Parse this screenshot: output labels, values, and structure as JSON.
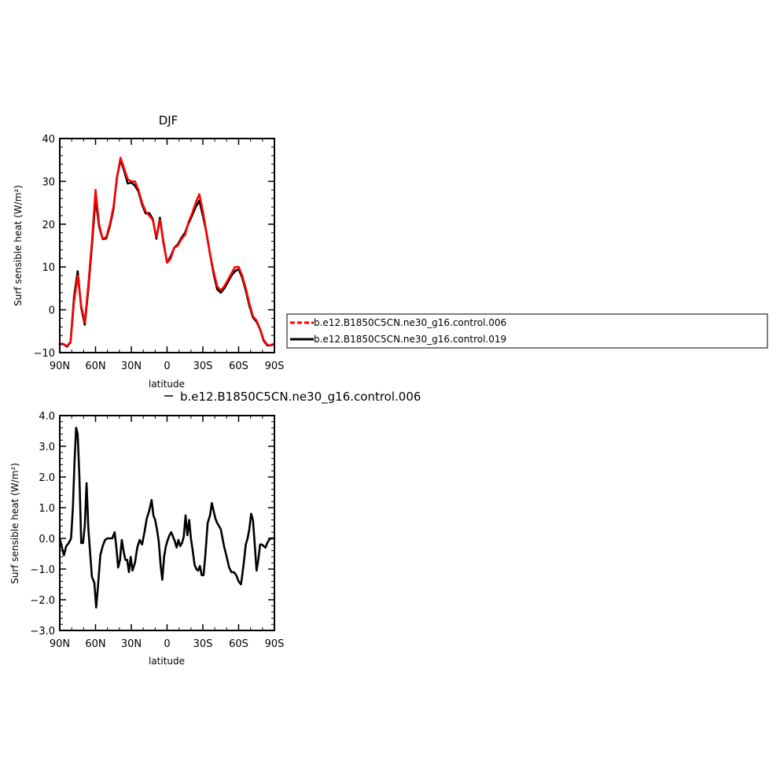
{
  "chart_data": [
    {
      "type": "line",
      "title": "DJF",
      "xlabel": "latitude",
      "ylabel": "Surf sensible heat (W/m²)",
      "ylim": [
        -10,
        40
      ],
      "xlim": [
        90,
        -90
      ],
      "x_ticks": [
        {
          "value": 90,
          "label": "90N"
        },
        {
          "value": 60,
          "label": "60N"
        },
        {
          "value": 30,
          "label": "30N"
        },
        {
          "value": 0,
          "label": "0"
        },
        {
          "value": -30,
          "label": "30S"
        },
        {
          "value": -60,
          "label": "60S"
        },
        {
          "value": -90,
          "label": "90S"
        }
      ],
      "y_ticks": [
        {
          "value": -10,
          "label": "−10"
        },
        {
          "value": 0,
          "label": "0"
        },
        {
          "value": 10,
          "label": "10"
        },
        {
          "value": 20,
          "label": "20"
        },
        {
          "value": 30,
          "label": "30"
        },
        {
          "value": 40,
          "label": "40"
        }
      ],
      "grid": false,
      "legend": "right",
      "x": [
        90,
        87,
        84,
        81,
        78,
        75,
        72,
        69,
        66,
        63,
        60,
        57,
        54,
        51,
        48,
        45,
        42,
        39,
        36,
        33,
        30,
        27,
        24,
        21,
        18,
        15,
        12,
        9,
        6,
        3,
        0,
        -3,
        -6,
        -9,
        -12,
        -15,
        -18,
        -21,
        -24,
        -27,
        -30,
        -33,
        -36,
        -39,
        -42,
        -45,
        -48,
        -51,
        -54,
        -57,
        -60,
        -63,
        -66,
        -69,
        -72,
        -75,
        -78,
        -81,
        -84,
        -87,
        -90
      ],
      "series": [
        {
          "name": "b.e12.B1850C5CN.ne30_g16.control.006",
          "color": "#ff0000",
          "dashed": true,
          "values": [
            -8,
            -8,
            -8.5,
            -7.5,
            2,
            8,
            1,
            -3,
            6,
            16,
            28,
            20,
            16.5,
            17,
            20,
            24,
            31,
            35.5,
            33,
            30.5,
            30,
            30,
            28,
            25,
            23,
            22,
            21,
            17,
            21,
            16,
            11,
            12,
            14.5,
            15,
            16.5,
            17.5,
            20.5,
            22.5,
            25,
            27,
            23,
            18,
            13,
            9,
            5.5,
            4.5,
            5.5,
            7,
            8.5,
            10,
            10,
            8,
            5,
            1.5,
            -1.5,
            -2.5,
            -4.5,
            -7,
            -8.2,
            -8.3,
            -8
          ]
        },
        {
          "name": "b.e12.B1850C5CN.ne30_g16.control.019",
          "color": "#000000",
          "dashed": false,
          "values": [
            -8,
            -8,
            -8.6,
            -7.6,
            3,
            9,
            0.5,
            -3.5,
            5,
            15,
            26,
            19.5,
            16.5,
            16.7,
            19.5,
            23.5,
            31,
            35,
            32.5,
            29.5,
            29.7,
            29,
            27.6,
            24.6,
            22.5,
            22.6,
            21.2,
            16.6,
            21.5,
            15.6,
            11,
            12.5,
            14.5,
            15.3,
            16.8,
            18,
            20.2,
            22,
            24,
            25.5,
            22,
            18,
            13,
            8.5,
            4.8,
            4,
            5,
            6.5,
            8,
            9,
            9.5,
            7.5,
            4.5,
            1,
            -1.8,
            -2.8,
            -4.6,
            -7.2,
            -8.3,
            -8.3,
            -8
          ]
        }
      ]
    },
    {
      "type": "line",
      "title": "",
      "xlabel": "latitude",
      "ylabel": "Surf sensible heat (W/m²)",
      "ylim": [
        -3,
        4
      ],
      "xlim": [
        90,
        -90
      ],
      "x_ticks": [
        {
          "value": 90,
          "label": "90N"
        },
        {
          "value": 60,
          "label": "60N"
        },
        {
          "value": 30,
          "label": "30N"
        },
        {
          "value": 0,
          "label": "0"
        },
        {
          "value": -30,
          "label": "30S"
        },
        {
          "value": -60,
          "label": "60S"
        },
        {
          "value": -90,
          "label": "90S"
        }
      ],
      "y_ticks": [
        {
          "value": -3,
          "label": "−3.0"
        },
        {
          "value": -2,
          "label": "−2.0"
        },
        {
          "value": -1,
          "label": "−1.0"
        },
        {
          "value": 0,
          "label": "0.0"
        },
        {
          "value": 1,
          "label": "1.0"
        },
        {
          "value": 2,
          "label": "2.0"
        },
        {
          "value": 3,
          "label": "3.0"
        },
        {
          "value": 4,
          "label": "4.0"
        }
      ],
      "grid": false,
      "legend": "top",
      "x": [
        90,
        88.5,
        86.5,
        84.5,
        82.5,
        80.5,
        79,
        77.6,
        76.3,
        75,
        73.5,
        72,
        70.5,
        69,
        67.5,
        66,
        64.5,
        63,
        61,
        59.5,
        58,
        56,
        54,
        52,
        50,
        48,
        46,
        44,
        42.5,
        41,
        39.5,
        38,
        36.5,
        35,
        33.5,
        32,
        30.5,
        29,
        27,
        25,
        23,
        21,
        19,
        17,
        15,
        13,
        11.5,
        10,
        8.5,
        7,
        5.5,
        4,
        2.5,
        1,
        -0.5,
        -2,
        -3.5,
        -5,
        -6.5,
        -8,
        -9.5,
        -11,
        -12.5,
        -14,
        -15.5,
        -17,
        -18.5,
        -20,
        -21.5,
        -23,
        -24.5,
        -26,
        -27.5,
        -29,
        -30.5,
        -32,
        -34,
        -36,
        -37.5,
        -39,
        -40.5,
        -42,
        -43.5,
        -45,
        -46.5,
        -48,
        -50,
        -52,
        -54,
        -56,
        -58,
        -60,
        -62,
        -64,
        -66,
        -67.5,
        -69,
        -70.5,
        -72,
        -73.5,
        -75,
        -76.5,
        -78,
        -79.5,
        -81,
        -82.5,
        -84,
        -85.5,
        -87,
        -88.5,
        -90
      ],
      "series": [
        {
          "name": "b.e12.B1850C5CN.ne30_g16.control.006",
          "color": "#000000",
          "dashed": false,
          "values": [
            0,
            -0.25,
            -0.55,
            -0.25,
            -0.15,
            0.0,
            1.0,
            2.5,
            3.6,
            3.4,
            2.0,
            -0.15,
            -0.15,
            0.4,
            1.8,
            0.3,
            -0.5,
            -1.25,
            -1.45,
            -2.25,
            -1.6,
            -0.55,
            -0.25,
            -0.05,
            0.0,
            0.0,
            0.0,
            0.2,
            -0.3,
            -0.95,
            -0.7,
            -0.05,
            -0.4,
            -0.7,
            -0.7,
            -1.1,
            -0.6,
            -1.05,
            -0.8,
            -0.3,
            -0.05,
            -0.2,
            0.2,
            0.65,
            0.9,
            1.25,
            0.75,
            0.6,
            0.3,
            -0.1,
            -0.85,
            -1.35,
            -0.6,
            -0.25,
            -0.05,
            0.1,
            0.2,
            0.05,
            -0.1,
            -0.3,
            -0.05,
            -0.25,
            -0.15,
            0.05,
            0.75,
            0.1,
            0.6,
            0.0,
            -0.4,
            -0.85,
            -1.0,
            -1.05,
            -0.9,
            -1.2,
            -1.2,
            -0.6,
            0.5,
            0.75,
            1.15,
            0.9,
            0.65,
            0.5,
            0.4,
            0.3,
            0.0,
            -0.3,
            -0.6,
            -0.95,
            -1.1,
            -1.1,
            -1.2,
            -1.4,
            -1.5,
            -0.9,
            -0.2,
            0.0,
            0.3,
            0.8,
            0.6,
            -0.2,
            -1.05,
            -0.7,
            -0.2,
            -0.2,
            -0.25,
            -0.3,
            -0.15,
            -0.05,
            0.0,
            0.0,
            0.0
          ]
        }
      ]
    }
  ]
}
